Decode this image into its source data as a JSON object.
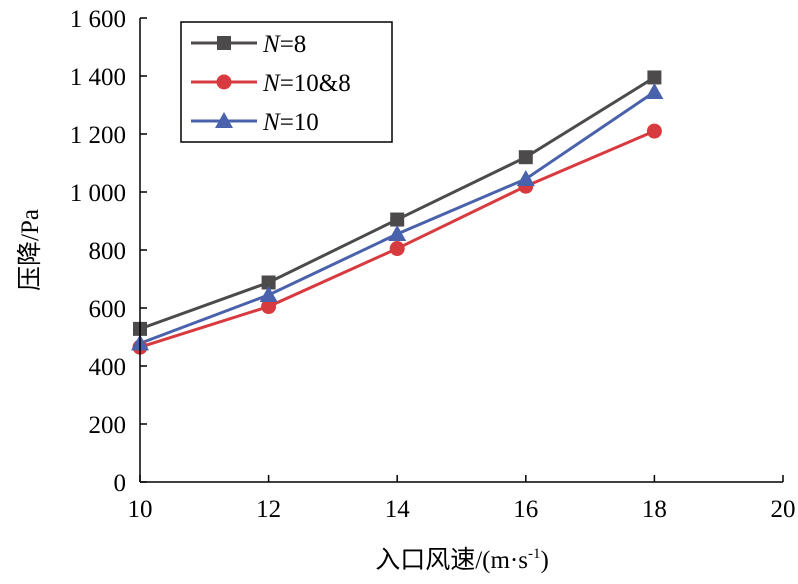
{
  "chart_data": {
    "type": "line",
    "title": "",
    "xlabel_prefix": "入口风速/(m·s",
    "xlabel_sup": "-1",
    "xlabel_suffix": ")",
    "ylabel": "压降/Pa",
    "xlim": [
      10,
      20
    ],
    "ylim": [
      0,
      1600
    ],
    "x_ticks": [
      10,
      12,
      14,
      16,
      18,
      20
    ],
    "x_tick_labels": [
      "10",
      "12",
      "14",
      "16",
      "18",
      "20"
    ],
    "y_ticks": [
      0,
      200,
      400,
      600,
      800,
      1000,
      1200,
      1400,
      1600
    ],
    "y_tick_labels": [
      "0",
      "200",
      "400",
      "600",
      "800",
      "1 000",
      "1 200",
      "1 400",
      "1 600"
    ],
    "grid": false,
    "legend_position": "top-left",
    "x": [
      10,
      12,
      14,
      16,
      18
    ],
    "series": [
      {
        "name_italic": "N",
        "name_rest": "=8",
        "marker": "square",
        "color": "#4d4a4b",
        "values": [
          528,
          688,
          905,
          1120,
          1395
        ]
      },
      {
        "name_italic": "N",
        "name_rest": "=10&8",
        "marker": "circle",
        "color": "#d83b3f",
        "values": [
          465,
          605,
          805,
          1020,
          1210
        ]
      },
      {
        "name_italic": "N",
        "name_rest": "=10",
        "marker": "triangle",
        "color": "#4a62ac",
        "values": [
          478,
          645,
          855,
          1045,
          1345
        ]
      }
    ]
  }
}
